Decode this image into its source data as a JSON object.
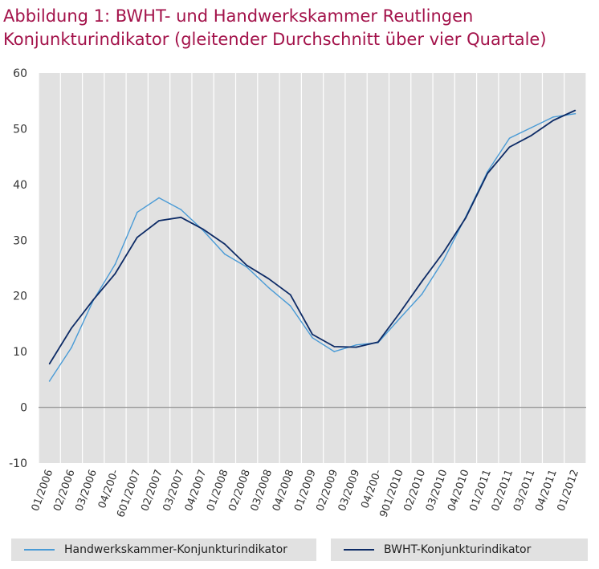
{
  "title": {
    "line1": "Abbildung 1: BWHT- und Handwerkskammer  Reutlingen",
    "line2": "Konjunkturindikator (gleitender Durchschnitt über vier Quartale)"
  },
  "colors": {
    "plot_background": "#e1e1e1",
    "grid": "#ffffff",
    "zero_line": "#9a9a9a",
    "title": "#a3124a"
  },
  "chart_data": {
    "type": "line",
    "title": "Abbildung 1: BWHT- und Handwerkskammer  Reutlingen Konjunkturindikator (gleitender Durchschnitt über vier Quartale)",
    "xlabel": "",
    "ylabel": "",
    "ylim": [
      -10,
      60
    ],
    "yticks": [
      -10,
      0,
      10,
      20,
      30,
      40,
      50,
      60
    ],
    "grid": true,
    "legend_position": "bottom",
    "x_tick_labels": [
      "01/2006",
      "02/2006",
      "03/2006",
      "04/200-",
      "601/2007",
      "02/2007",
      "03/2007",
      "04/2007",
      "01/2008",
      "02/2008",
      "03/2008",
      "04/2008",
      "01/2009",
      "02/2009",
      "03/2009",
      "04/200-",
      "901/2010",
      "02/2010",
      "03/2010",
      "04/2010",
      "01/2011",
      "02/2011",
      "03/2011",
      "04/2011",
      "01/2012"
    ],
    "categories": [
      "01/2006",
      "02/2006",
      "03/2006",
      "04/2006",
      "01/2007",
      "02/2007",
      "03/2007",
      "04/2007",
      "01/2008",
      "02/2008",
      "03/2008",
      "04/2008",
      "01/2009",
      "02/2009",
      "03/2009",
      "04/2009",
      "01/2010",
      "02/2010",
      "03/2010",
      "04/2010",
      "01/2011",
      "02/2011",
      "03/2011",
      "04/2011",
      "01/2012"
    ],
    "series": [
      {
        "name": "Handwerkskammer-Konjunkturindikator",
        "color": "#4a9bd6",
        "values": [
          4.7,
          10.7,
          19.2,
          25.7,
          35.0,
          37.6,
          35.5,
          31.8,
          27.5,
          25.2,
          21.5,
          18.2,
          12.5,
          10.0,
          11.2,
          11.6,
          16.0,
          20.3,
          26.5,
          34.2,
          42.3,
          48.3,
          50.2,
          52.1,
          52.7
        ]
      },
      {
        "name": "BWHT-Konjunkturindikator",
        "color": "#0d2b66",
        "values": [
          7.8,
          14.2,
          19.3,
          24.0,
          30.5,
          33.5,
          34.1,
          32.0,
          29.3,
          25.5,
          23.1,
          20.2,
          13.1,
          10.9,
          10.8,
          11.7,
          17.0,
          22.6,
          27.9,
          34.0,
          42.0,
          46.7,
          48.8,
          51.5,
          53.3
        ]
      }
    ]
  }
}
